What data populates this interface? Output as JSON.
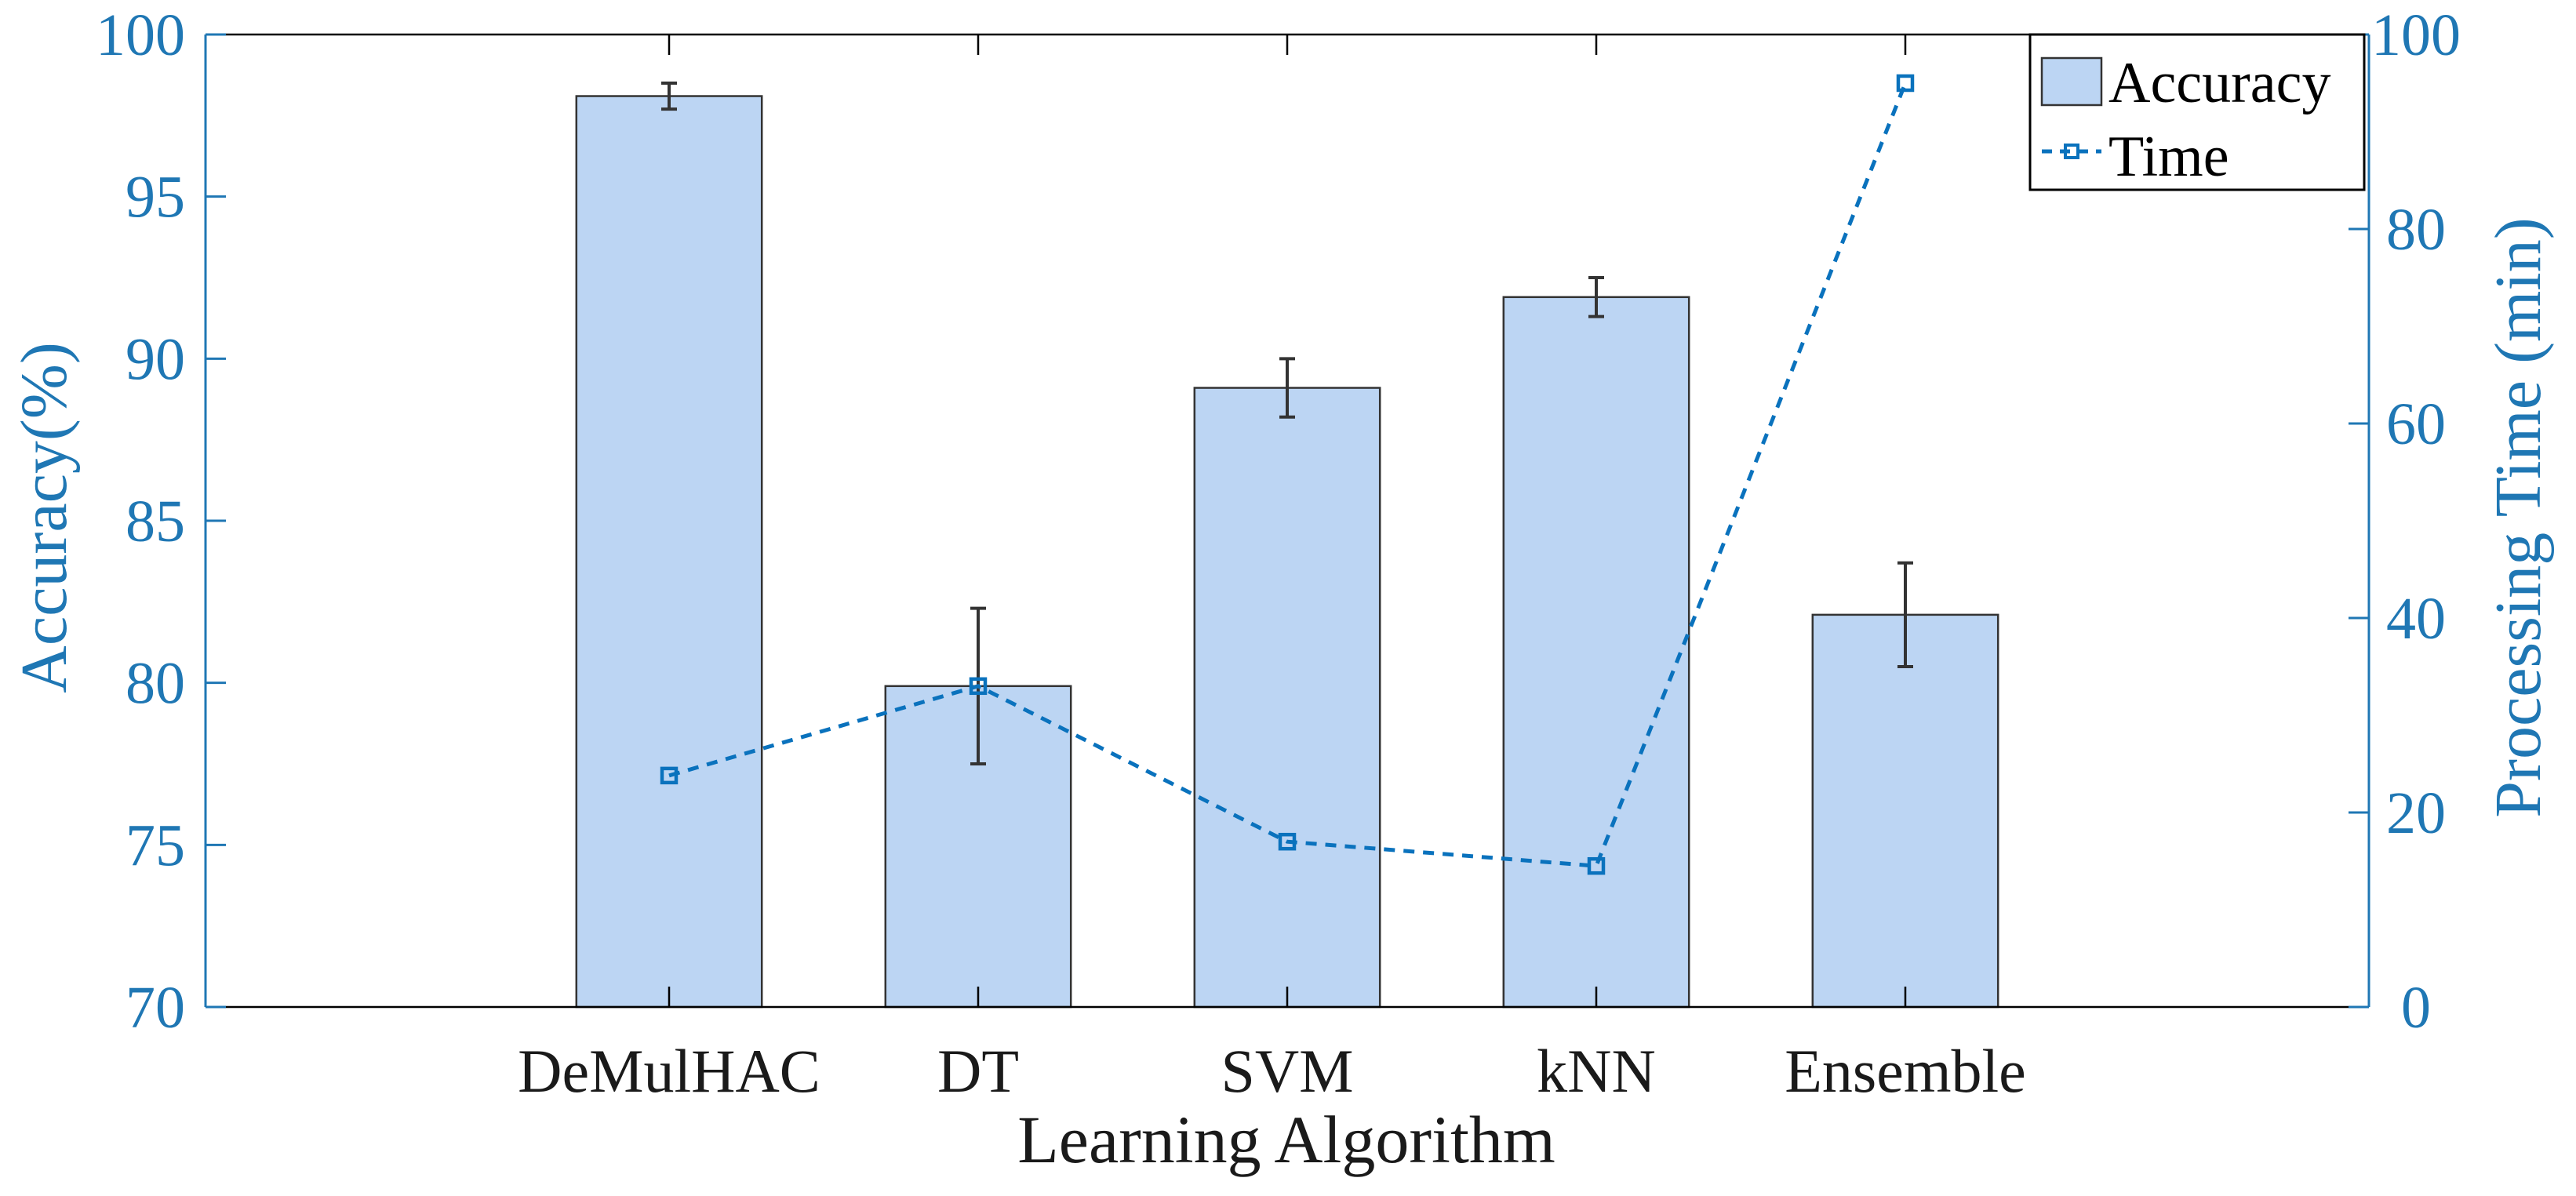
{
  "chart_data": {
    "type": "bar",
    "title": "",
    "categories": [
      "DeMulHAC",
      "DT",
      "SVM",
      "kNN",
      "Ensemble"
    ],
    "series": [
      {
        "name": "Accuracy",
        "axis": "left",
        "kind": "bar",
        "values": [
          98.1,
          79.9,
          89.1,
          91.9,
          82.1
        ],
        "error": [
          0.4,
          2.4,
          0.9,
          0.6,
          1.6
        ]
      },
      {
        "name": "Time",
        "axis": "right",
        "kind": "line",
        "style": "dashed",
        "marker": "square",
        "values": [
          23.8,
          33.0,
          17.0,
          14.5,
          95.0
        ]
      }
    ],
    "xlabel": "Learning Algorithm",
    "ylabel_left": "Accuracy(%)",
    "ylabel_right": "Processing Time (min)",
    "ylim_left": [
      70,
      100
    ],
    "ylim_right": [
      0,
      100
    ],
    "yticks_left": [
      "70",
      "75",
      "80",
      "85",
      "90",
      "95",
      "100"
    ],
    "yticks_right": [
      "0",
      "20",
      "40",
      "60",
      "80",
      "100"
    ],
    "grid": false,
    "legend": {
      "placement": "top-right",
      "entries": [
        "Accuracy",
        "Time"
      ]
    },
    "colors": {
      "bar_fill": "#bcd5f3",
      "bar_edge": "#333333",
      "line": "#0a72bd",
      "axis": "#1f77b4",
      "errorbar": "#333333",
      "text": "#1a1a1a"
    }
  }
}
